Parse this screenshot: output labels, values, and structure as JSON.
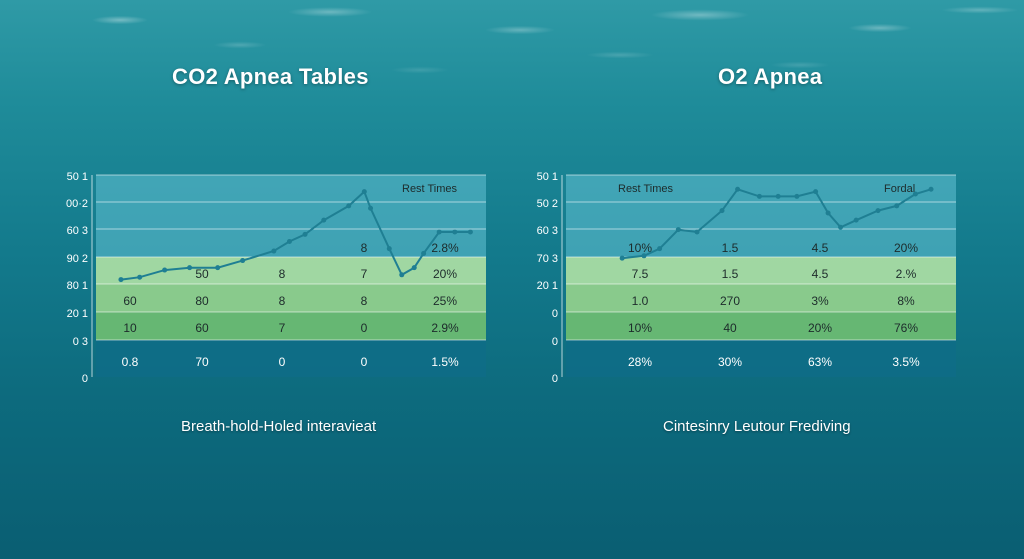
{
  "colors": {
    "band_top": "#4fb0c2",
    "band_mid": "#a9dca3",
    "band_green1": "#90cf8c",
    "band_green2": "#6cbb72",
    "band_bottom": "#0f6d86",
    "line": "#1f7f93",
    "text_dark": "#1d2b2b",
    "text_light": "#ffffff"
  },
  "chart_data": [
    {
      "type": "table",
      "title": "CO2 Apnea Tables",
      "caption": "Breath-hold-Holed interavieat",
      "ytick_labels": [
        "50 1",
        "00·2",
        "60 3",
        "90 2",
        "80 1",
        "20 1",
        "0 3",
        "0"
      ],
      "header_label": "Rest Times",
      "rows": [
        [
          "",
          "",
          "",
          "8",
          "2.8%"
        ],
        [
          "",
          "50",
          "8",
          "7",
          "20%"
        ],
        [
          "60",
          "80",
          "8",
          "8",
          "25%"
        ],
        [
          "10",
          "60",
          "7",
          "0",
          "2.9%"
        ],
        [
          "0.8",
          "70",
          "0",
          "0",
          "1.5%"
        ]
      ],
      "line": {
        "x": [
          0.08,
          0.14,
          0.22,
          0.3,
          0.39,
          0.47,
          0.57,
          0.62,
          0.67,
          0.73,
          0.81,
          0.86,
          0.88,
          0.94,
          0.98,
          1.02,
          1.05,
          1.1,
          1.15,
          1.2
        ],
        "y": [
          4.1,
          4.2,
          4.5,
          4.6,
          4.6,
          4.9,
          5.3,
          5.7,
          6.0,
          6.6,
          7.2,
          7.8,
          7.1,
          5.4,
          4.3,
          4.6,
          5.2,
          6.1,
          6.1,
          6.1
        ]
      }
    },
    {
      "type": "table",
      "title": "O2 Apnea",
      "caption": "Cintesinry Leutour Frediving",
      "ytick_labels": [
        "50 1",
        "50 2",
        "60 3",
        "70 3",
        "20 1",
        "0",
        "0",
        "0"
      ],
      "header_labels": [
        "Rest Times",
        "Fordal"
      ],
      "rows": [
        [
          "10%",
          "1.5",
          "4.5",
          "20%"
        ],
        [
          "7.5",
          "1.5",
          "4.5",
          "2.%"
        ],
        [
          "1.0",
          "270",
          "3%",
          "8%"
        ],
        [
          "10%",
          "40",
          "20%",
          "76%"
        ],
        [
          "28%",
          "30%",
          "63%",
          "3.5%"
        ]
      ],
      "line": {
        "x": [
          0.18,
          0.25,
          0.3,
          0.36,
          0.42,
          0.5,
          0.55,
          0.62,
          0.68,
          0.74,
          0.8,
          0.84,
          0.88,
          0.93,
          1.0,
          1.06,
          1.12,
          1.17
        ],
        "y": [
          5.0,
          5.1,
          5.4,
          6.2,
          6.1,
          7.0,
          7.9,
          7.6,
          7.6,
          7.6,
          7.8,
          6.9,
          6.3,
          6.6,
          7.0,
          7.2,
          7.7,
          7.9
        ]
      }
    }
  ]
}
